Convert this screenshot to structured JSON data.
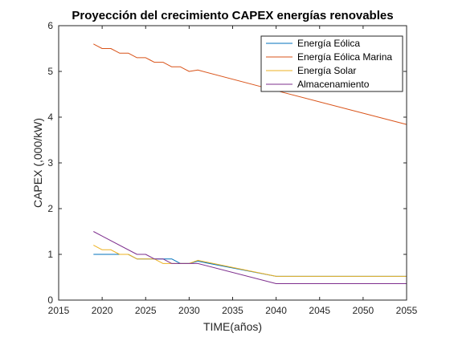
{
  "chart_data": {
    "type": "line",
    "title": "Proyección del crecimiento CAPEX energías renovables",
    "xlabel": "TIME(años)",
    "ylabel": "CAPEX (,000/kW)",
    "xlim": [
      2015,
      2055
    ],
    "ylim": [
      0,
      6
    ],
    "xticks": [
      2015,
      2020,
      2025,
      2030,
      2035,
      2040,
      2045,
      2050,
      2055
    ],
    "yticks": [
      0,
      1,
      2,
      3,
      4,
      5,
      6
    ],
    "grid": false,
    "legend_position": "top-right",
    "series": [
      {
        "name": "Energía Eólica",
        "color": "#0072BD",
        "x": [
          2019,
          2020,
          2021,
          2022,
          2023,
          2024,
          2025,
          2026,
          2027,
          2028,
          2029,
          2030,
          2031,
          2040,
          2055
        ],
        "y": [
          1.0,
          1.0,
          1.0,
          1.0,
          1.0,
          0.9,
          0.9,
          0.9,
          0.9,
          0.9,
          0.8,
          0.8,
          0.85,
          0.52,
          0.52
        ]
      },
      {
        "name": "Energía Eólica Marina",
        "color": "#D95319",
        "x": [
          2019,
          2019.5,
          2020,
          2021,
          2021.5,
          2022,
          2023,
          2023.5,
          2024,
          2025,
          2025.5,
          2026,
          2027,
          2027.5,
          2028,
          2029,
          2029.5,
          2030,
          2031,
          2040,
          2055
        ],
        "y": [
          5.6,
          5.55,
          5.5,
          5.5,
          5.45,
          5.4,
          5.4,
          5.35,
          5.3,
          5.3,
          5.25,
          5.2,
          5.2,
          5.15,
          5.1,
          5.1,
          5.05,
          5.0,
          5.03,
          4.58,
          3.84
        ]
      },
      {
        "name": "Energía Solar",
        "color": "#EDB120",
        "x": [
          2019,
          2020,
          2021,
          2022,
          2023,
          2024,
          2025,
          2026,
          2027,
          2028,
          2029,
          2030,
          2031,
          2040,
          2055
        ],
        "y": [
          1.2,
          1.1,
          1.1,
          1.0,
          1.0,
          0.9,
          0.9,
          0.9,
          0.8,
          0.8,
          0.8,
          0.8,
          0.87,
          0.52,
          0.52
        ]
      },
      {
        "name": "Almacenamiento",
        "color": "#7E2F8E",
        "x": [
          2019,
          2024,
          2025,
          2026,
          2027,
          2028,
          2029,
          2030,
          2031,
          2040,
          2055
        ],
        "y": [
          1.5,
          1.0,
          1.0,
          0.9,
          0.9,
          0.8,
          0.8,
          0.8,
          0.8,
          0.36,
          0.36
        ]
      }
    ]
  }
}
